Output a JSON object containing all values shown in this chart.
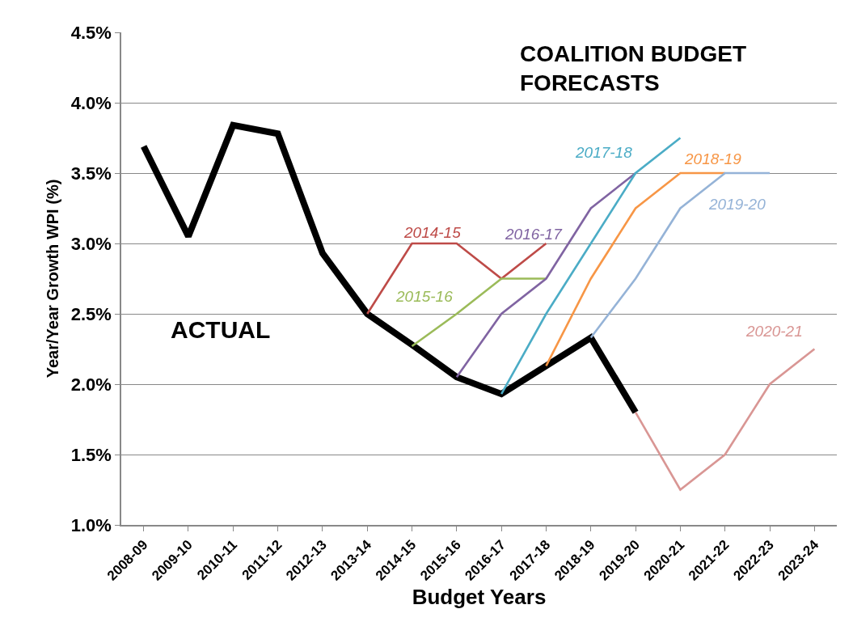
{
  "chart_data": {
    "type": "line",
    "xlabel": "Budget Years",
    "ylabel": "Year/Year Growth WPI (%)",
    "categories": [
      "2008-09",
      "2009-10",
      "2010-11",
      "2011-12",
      "2012-13",
      "2013-14",
      "2014-15",
      "2015-16",
      "2016-17",
      "2017-18",
      "2018-19",
      "2019-20",
      "2020-21",
      "2021-22",
      "2022-23",
      "2023-24"
    ],
    "series": [
      {
        "name": "ACTUAL",
        "color": "#000000",
        "values": [
          3.69,
          3.05,
          3.84,
          3.78,
          2.93,
          2.5,
          2.28,
          2.05,
          1.93,
          2.13,
          2.33,
          1.8,
          null,
          null,
          null,
          null
        ]
      },
      {
        "name": "2014-15",
        "color": "#be4b48",
        "values": [
          null,
          null,
          null,
          null,
          null,
          2.5,
          3.0,
          3.0,
          2.75,
          3.0,
          null,
          null,
          null,
          null,
          null,
          null
        ]
      },
      {
        "name": "2015-16",
        "color": "#9bbb59",
        "values": [
          null,
          null,
          null,
          null,
          null,
          null,
          2.27,
          2.5,
          2.75,
          2.75,
          null,
          null,
          null,
          null,
          null,
          null
        ]
      },
      {
        "name": "2016-17",
        "color": "#8064a2",
        "values": [
          null,
          null,
          null,
          null,
          null,
          null,
          null,
          2.05,
          2.5,
          2.75,
          3.25,
          3.5,
          null,
          null,
          null,
          null
        ]
      },
      {
        "name": "2017-18",
        "color": "#4bacc6",
        "values": [
          null,
          null,
          null,
          null,
          null,
          null,
          null,
          null,
          1.93,
          2.5,
          3.0,
          3.5,
          3.75,
          null,
          null,
          null
        ]
      },
      {
        "name": "2018-19",
        "color": "#f79646",
        "values": [
          null,
          null,
          null,
          null,
          null,
          null,
          null,
          null,
          null,
          2.13,
          2.75,
          3.25,
          3.5,
          3.5,
          null,
          null
        ]
      },
      {
        "name": "2019-20",
        "color": "#95b3d7",
        "values": [
          null,
          null,
          null,
          null,
          null,
          null,
          null,
          null,
          null,
          null,
          2.33,
          2.75,
          3.25,
          3.5,
          3.5,
          null
        ]
      },
      {
        "name": "2020-21",
        "color": "#d99694",
        "values": [
          null,
          null,
          null,
          null,
          null,
          null,
          null,
          null,
          null,
          null,
          null,
          1.8,
          1.25,
          1.5,
          2.0,
          2.25
        ]
      }
    ],
    "ylim": [
      1.0,
      4.5
    ],
    "yticks": [
      {
        "value": 1.0,
        "label": "1.0%"
      },
      {
        "value": 1.5,
        "label": "1.5%"
      },
      {
        "value": 2.0,
        "label": "2.0%"
      },
      {
        "value": 2.5,
        "label": "2.5%"
      },
      {
        "value": 3.0,
        "label": "3.0%"
      },
      {
        "value": 3.5,
        "label": "3.5%"
      },
      {
        "value": 4.0,
        "label": "4.0%"
      },
      {
        "value": 4.5,
        "label": "4.5%"
      }
    ],
    "grid": "y",
    "legend": false,
    "marker": "none",
    "line_style": "solid",
    "annotations": [
      "COALITION BUDGET FORECASTS"
    ]
  }
}
